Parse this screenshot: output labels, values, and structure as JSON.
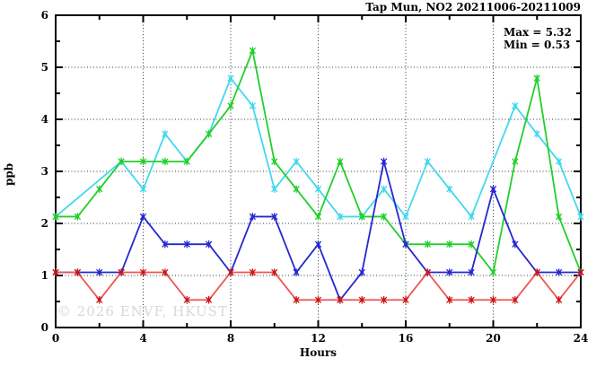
{
  "chart_data": {
    "type": "line",
    "title": "Tap Mun, NO2 20211006-20211009",
    "xlabel": "Hours",
    "ylabel": "ppb",
    "xlim": [
      0,
      24
    ],
    "ylim": [
      0,
      6
    ],
    "xticks": [
      0,
      4,
      8,
      12,
      16,
      20,
      24
    ],
    "xticks_minor": [
      2,
      6,
      10,
      14,
      18,
      22
    ],
    "yticks": [
      0,
      1,
      2,
      3,
      4,
      5,
      6
    ],
    "yticks_minor": [
      0.5,
      1.5,
      2.5,
      3.5,
      4.5,
      5.5
    ],
    "grid": true,
    "legend": "none",
    "annotations": {
      "max_label": "Max = 5.32",
      "min_label": "Min = 0.53"
    },
    "watermark": "© 2026 ENVF, HKUST",
    "stats": {
      "max": 5.32,
      "min": 0.53
    },
    "x": [
      0,
      1,
      2,
      3,
      4,
      5,
      6,
      7,
      8,
      9,
      10,
      11,
      12,
      13,
      14,
      15,
      16,
      17,
      18,
      19,
      20,
      21,
      22,
      23,
      24
    ],
    "series": [
      {
        "name": "cyan",
        "color": "#42d8ef",
        "marker_color": "#42d8ef",
        "values": [
          2.13,
          null,
          null,
          3.19,
          2.66,
          3.72,
          3.19,
          3.72,
          4.79,
          4.26,
          2.66,
          3.19,
          2.66,
          2.13,
          2.13,
          2.66,
          2.13,
          3.19,
          2.66,
          2.13,
          null,
          4.26,
          3.72,
          3.19,
          2.13
        ]
      },
      {
        "name": "green",
        "color": "#22cf2b",
        "marker_color": "#22cf2b",
        "values": [
          2.13,
          2.13,
          2.66,
          3.19,
          3.19,
          3.19,
          3.19,
          3.72,
          4.26,
          5.32,
          3.19,
          2.66,
          2.13,
          3.19,
          2.13,
          2.13,
          1.6,
          1.6,
          1.6,
          1.6,
          1.06,
          3.19,
          4.79,
          2.13,
          1.06
        ]
      },
      {
        "name": "blue",
        "color": "#2428cf",
        "marker_color": "#2428cf",
        "values": [
          1.06,
          1.06,
          1.06,
          1.06,
          2.13,
          1.6,
          1.6,
          1.6,
          1.06,
          2.13,
          2.13,
          1.06,
          1.6,
          0.53,
          1.06,
          3.19,
          1.6,
          1.06,
          1.06,
          1.06,
          2.66,
          1.6,
          1.06,
          1.06,
          1.06
        ]
      },
      {
        "name": "red",
        "color": "#ee5555",
        "marker_color": "#cc1515",
        "values": [
          1.06,
          1.06,
          0.53,
          1.06,
          1.06,
          1.06,
          0.53,
          0.53,
          1.06,
          1.06,
          1.06,
          0.53,
          0.53,
          0.53,
          0.53,
          0.53,
          0.53,
          1.06,
          0.53,
          0.53,
          0.53,
          0.53,
          1.06,
          0.53,
          1.06
        ]
      }
    ]
  }
}
